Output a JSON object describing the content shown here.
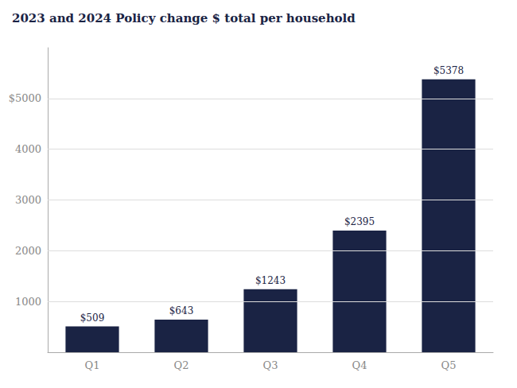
{
  "chart_data": {
    "type": "bar",
    "title": "2023 and 2024 Policy change $ total per household",
    "categories": [
      "Q1",
      "Q2",
      "Q3",
      "Q4",
      "Q5"
    ],
    "values": [
      509,
      643,
      1243,
      2395,
      5378
    ],
    "value_labels": [
      "$509",
      "$643",
      "$1243",
      "$2395",
      "$5378"
    ],
    "data_labels": true,
    "color": "#1a2344",
    "ylim": [
      0,
      6000
    ],
    "yticks": [
      1000,
      2000,
      3000,
      4000,
      {
        "value": 5000,
        "label": "$5000"
      }
    ],
    "grid": true
  }
}
